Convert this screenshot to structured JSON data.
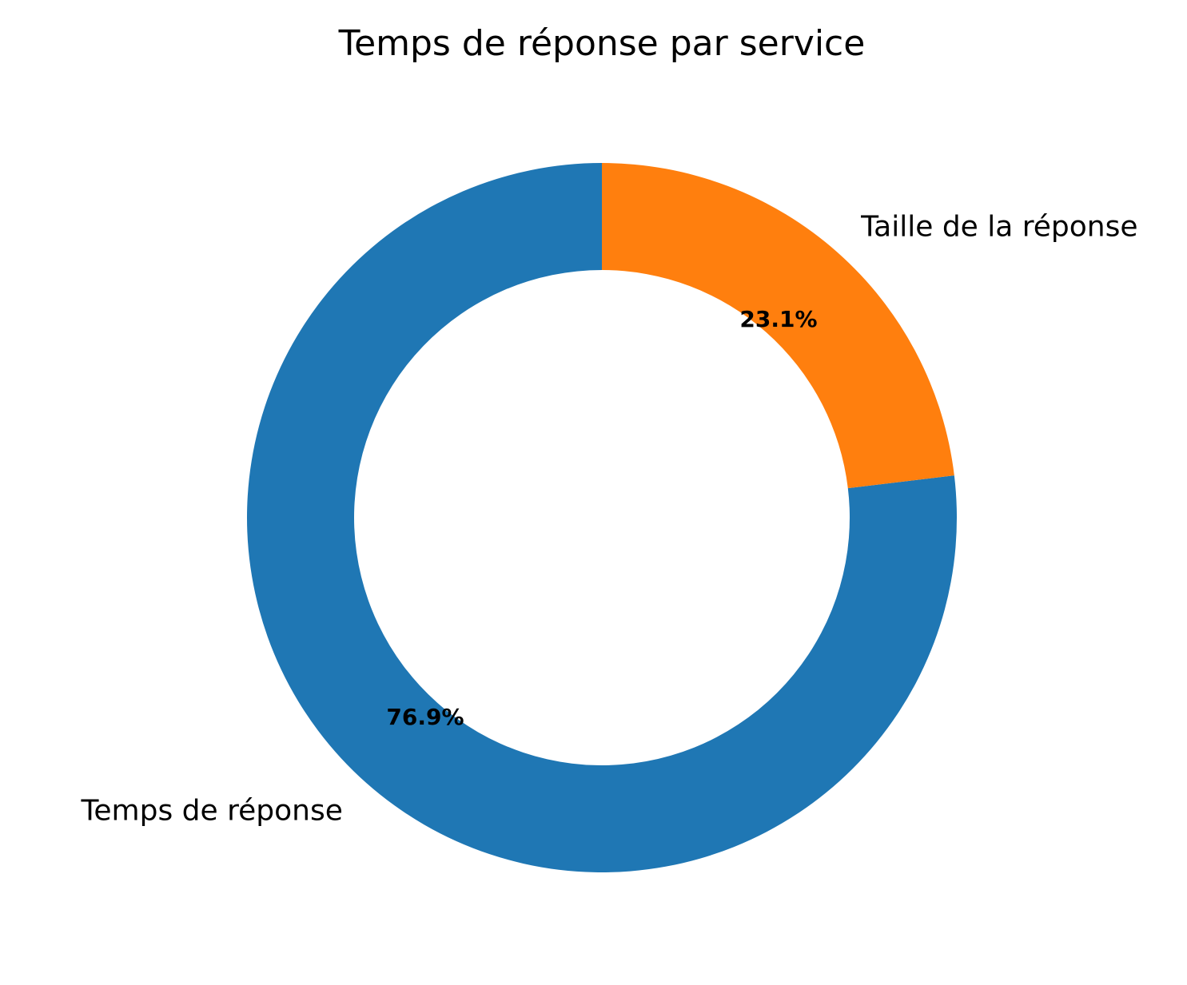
{
  "chart_data": {
    "type": "pie",
    "title": "Temps de réponse par service",
    "donut": true,
    "start_angle_deg": 90,
    "direction": "counterclockwise",
    "slices": [
      {
        "label": "Temps de réponse",
        "value": 76.9,
        "percent_label": "76.9%",
        "color": "#1f77b4"
      },
      {
        "label": "Taille de la réponse",
        "value": 23.1,
        "percent_label": "23.1%",
        "color": "#ff7f0e"
      }
    ]
  }
}
